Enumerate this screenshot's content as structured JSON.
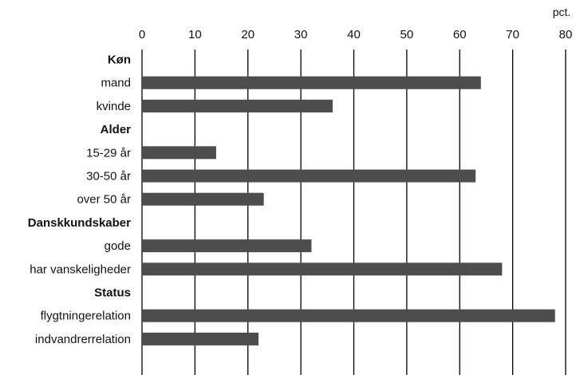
{
  "chart_data": {
    "type": "bar",
    "orientation": "horizontal",
    "unit": "pct.",
    "xlim": [
      0,
      80
    ],
    "xticks": [
      0,
      10,
      20,
      30,
      40,
      50,
      60,
      70,
      80
    ],
    "grid": true,
    "bar_color": "#4d4d4d",
    "groups": [
      {
        "label": "Køn",
        "categories": [
          "mand",
          "kvinde"
        ],
        "values": [
          64,
          36
        ]
      },
      {
        "label": "Alder",
        "categories": [
          "15-29 år",
          "30-50 år",
          "over 50 år"
        ],
        "values": [
          14,
          63,
          23
        ]
      },
      {
        "label": "Danskkundskaber",
        "categories": [
          "gode",
          "har vanskeligheder"
        ],
        "values": [
          32,
          68
        ]
      },
      {
        "label": "Status",
        "categories": [
          "flygtningerelation",
          "indvandrerrelation"
        ],
        "values": [
          78,
          22
        ]
      }
    ]
  }
}
